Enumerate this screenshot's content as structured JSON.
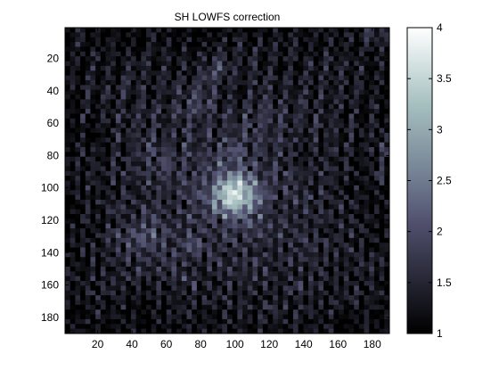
{
  "chart_data": {
    "type": "heatmap",
    "title": "SH LOWFS correction",
    "xlabel": "",
    "ylabel": "",
    "colormap": "bone",
    "x_ticks": [
      "20",
      "40",
      "60",
      "80",
      "100",
      "120",
      "140",
      "160",
      "180"
    ],
    "y_ticks": [
      "20",
      "40",
      "60",
      "80",
      "100",
      "120",
      "140",
      "160",
      "180"
    ],
    "xlim": [
      1,
      190
    ],
    "ylim": [
      1,
      190
    ],
    "colorbar": {
      "ticks": [
        "1",
        "1.5",
        "2",
        "2.5",
        "3",
        "3.5",
        "4"
      ],
      "range": [
        1,
        4
      ]
    },
    "field": {
      "description_values": "speckle intensity field, background ~1.3-2.3, bright core up to ~3.6",
      "background_mean": 1.7,
      "peak_value": 3.6,
      "peak_center": [
        100,
        104
      ]
    }
  }
}
